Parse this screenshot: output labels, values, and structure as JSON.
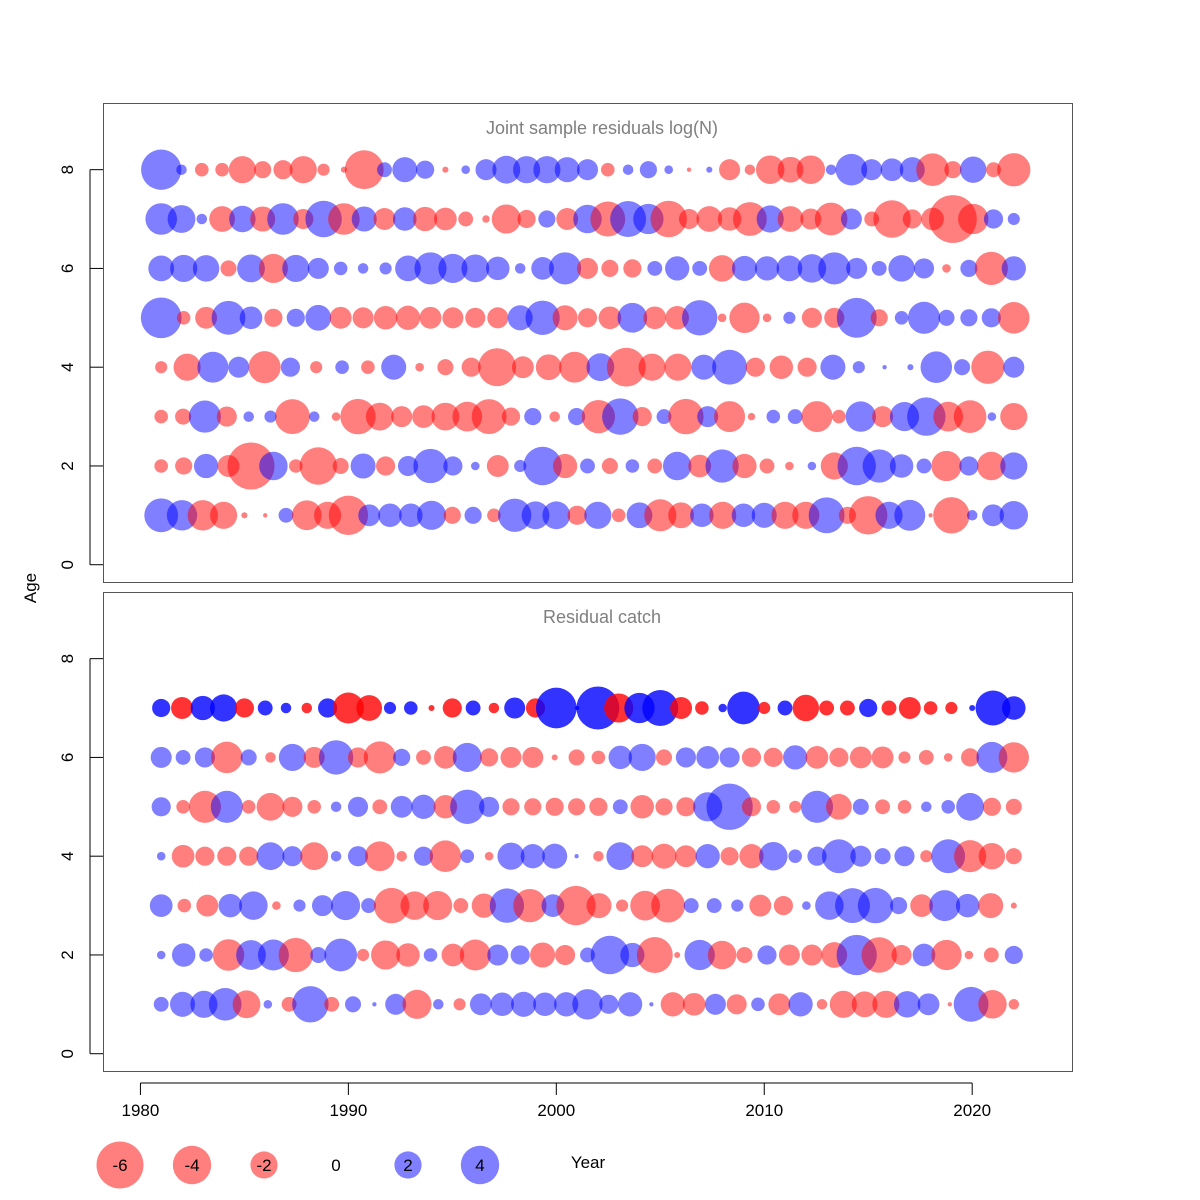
{
  "colors": {
    "negative": "#ff0000",
    "positive": "#0000ff",
    "negative_alpha": 0.5,
    "positive_alpha": 0.5,
    "catch_age7_alpha": 0.8,
    "title": "#7f7f7f",
    "frame": "#555555"
  },
  "ylabel": "Age",
  "xlabel": "Year",
  "chart_data": [
    {
      "type": "scatter",
      "title": "Joint sample residuals log(N)",
      "xlabel": "Year",
      "ylabel": "Age",
      "xlim": [
        1978.2,
        2024.8
      ],
      "ylim": [
        -0.35,
        9.35
      ],
      "xticks": [
        1980,
        1990,
        2000,
        2010,
        2020
      ],
      "yticks": [
        0,
        2,
        4,
        6,
        8
      ],
      "ages": [
        8,
        7,
        6,
        5,
        4,
        3,
        2,
        1
      ],
      "year_start": 1981,
      "year_end": 2022,
      "residual_scale": "bubble area proportional to |residual|; red = negative, blue = positive",
      "residuals": {
        "8": [
          4.4,
          0.3,
          -0.5,
          -0.5,
          -2.0,
          -0.8,
          -1.0,
          -2.0,
          -0.4,
          -0.1,
          -4.1,
          0.6,
          1.7,
          0.9,
          -0.1,
          0.2,
          1.2,
          2.1,
          2.0,
          2.0,
          1.7,
          1.2,
          -0.5,
          0.3,
          0.8,
          0.2,
          -0.05,
          0.1,
          -1.2,
          -0.3,
          -2.2,
          -1.8,
          -2.2,
          0.3,
          2.7,
          1.2,
          1.4,
          1.7,
          -2.9,
          -0.8,
          1.9,
          -0.6,
          -3.0
        ],
        "7": [
          2.7,
          2.1,
          0.3,
          -1.8,
          1.9,
          -1.7,
          2.7,
          -1.1,
          3.6,
          -2.7,
          1.7,
          -1.3,
          1.5,
          -1.6,
          -1.4,
          -0.6,
          -0.15,
          -2.3,
          -0.9,
          0.8,
          -1.3,
          2.2,
          -3.3,
          3.5,
          2.5,
          -3.6,
          -1.1,
          -1.8,
          -1.5,
          -3.1,
          2.0,
          -1.8,
          -1.2,
          -2.9,
          1.2,
          -0.6,
          -3.8,
          -1.0,
          -1.4,
          -6.2,
          -2.5,
          1.0,
          0.4
        ],
        "6": [
          1.8,
          2.0,
          1.9,
          -0.7,
          2.1,
          -2.3,
          2.0,
          1.2,
          0.5,
          0.3,
          0.4,
          1.8,
          2.8,
          2.3,
          2.1,
          1.5,
          0.3,
          1.4,
          2.8,
          -1.2,
          -0.8,
          -0.9,
          0.6,
          1.6,
          0.6,
          -1.9,
          1.7,
          1.6,
          1.8,
          2.2,
          2.8,
          1.2,
          0.6,
          1.9,
          1.1,
          -0.2,
          0.8,
          -3.0,
          1.6
        ],
        "5": [
          4.5,
          -0.5,
          -1.3,
          3.1,
          1.4,
          -0.9,
          0.9,
          1.8,
          -1.3,
          -1.2,
          -1.5,
          -1.6,
          -1.3,
          -1.2,
          -1.1,
          -1.2,
          1.7,
          3.2,
          -1.7,
          -1.0,
          -1.4,
          2.4,
          -1.4,
          -1.5,
          3.4,
          -0.2,
          -2.5,
          -0.2,
          0.4,
          -1.1,
          -1.1,
          4.3,
          -0.8,
          0.5,
          2.8,
          0.7,
          0.8,
          1.0,
          -2.7
        ],
        "4": [
          -0.4,
          -2.0,
          2.6,
          1.2,
          -2.8,
          1.0,
          -0.4,
          0.5,
          -0.5,
          1.7,
          -0.2,
          -0.7,
          -1.0,
          -3.9,
          -1.3,
          -1.8,
          -2.6,
          2.1,
          -4.1,
          -2.0,
          -2.0,
          1.7,
          3.3,
          -1.0,
          -1.5,
          -1.0,
          1.7,
          0.4,
          0.05,
          0.1,
          2.7,
          0.7,
          -3.0,
          1.2
        ],
        "3": [
          -0.5,
          -0.7,
          2.8,
          -1.1,
          0.3,
          0.4,
          -3.3,
          0.3,
          -0.2,
          -3.4,
          -2.1,
          -1.2,
          -1.4,
          -2.1,
          -2.4,
          -3.3,
          -0.9,
          0.8,
          -0.3,
          0.8,
          -3.0,
          3.6,
          -1.0,
          0.6,
          -3.4,
          1.2,
          -2.6,
          -0.15,
          0.5,
          0.6,
          -2.6,
          -0.5,
          2.5,
          -1.2,
          2.3,
          4.0,
          -2.4,
          -2.9,
          0.2,
          -2.0
        ],
        "2": [
          -0.5,
          -0.8,
          1.6,
          -1.3,
          -6.0,
          2.2,
          -0.5,
          -3.8,
          -0.7,
          1.7,
          -1.0,
          1.1,
          3.2,
          1.0,
          0.2,
          -1.3,
          0.4,
          4.0,
          -1.6,
          0.6,
          -0.7,
          0.5,
          -0.6,
          2.2,
          -1.4,
          3.0,
          -1.6,
          -0.6,
          -0.2,
          0.2,
          -2.0,
          4.0,
          3.0,
          1.5,
          0.6,
          -2.5,
          1.0,
          -2.2,
          2.0
        ],
        "1": [
          3.1,
          2.5,
          -2.5,
          -2.0,
          -0.1,
          -0.05,
          0.6,
          -2.4,
          -2.0,
          -4.2,
          1.3,
          1.5,
          1.5,
          2.3,
          -0.8,
          0.8,
          -0.5,
          3.0,
          2.1,
          2.1,
          -1.0,
          2.0,
          -0.5,
          1.8,
          -2.8,
          -1.8,
          1.5,
          -2.0,
          1.5,
          1.7,
          -2.0,
          -2.0,
          3.5,
          -0.8,
          -4.0,
          2.0,
          2.6,
          -0.05,
          -3.6,
          0.3,
          1.3,
          2.2
        ]
      }
    },
    {
      "type": "scatter",
      "title": "Residual catch",
      "xlabel": "Year",
      "ylabel": "Age",
      "xlim": [
        1978.2,
        2024.8
      ],
      "ylim": [
        -0.35,
        9.35
      ],
      "xticks": [
        1980,
        1990,
        2000,
        2010,
        2020
      ],
      "yticks": [
        0,
        2,
        4,
        6,
        8
      ],
      "ages": [
        7,
        6,
        5,
        4,
        3,
        2,
        1
      ],
      "year_start": 1981,
      "year_end": 2022,
      "residual_scale": "bubble area proportional to |residual|; red = negative, blue = positive",
      "residuals": {
        "7": [
          0.9,
          -1.3,
          1.6,
          2.0,
          -1.0,
          0.6,
          0.3,
          -0.3,
          1.0,
          -2.6,
          -1.8,
          0.4,
          0.5,
          -0.1,
          -1.0,
          0.6,
          -0.3,
          1.2,
          -1.0,
          4.5,
          0.05,
          5.0,
          -2.3,
          2.5,
          3.5,
          -1.3,
          -0.5,
          0.2,
          2.9,
          -0.4,
          0.6,
          -1.9,
          -0.6,
          -0.6,
          0.9,
          -0.6,
          -1.3,
          -0.5,
          -0.4,
          0.1,
          3.3,
          1.5
        ],
        "6": [
          1.2,
          0.6,
          1.1,
          -2.7,
          0.7,
          -0.3,
          2.0,
          -1.2,
          3.2,
          -1.1,
          -2.8,
          0.8,
          -0.6,
          -1.4,
          2.3,
          -0.9,
          -1.2,
          -1.2,
          -0.1,
          -0.7,
          -0.5,
          1.5,
          2.0,
          -0.7,
          1.1,
          1.4,
          1.1,
          -1.0,
          -1.0,
          1.6,
          -1.4,
          -1.0,
          -1.3,
          -1.3,
          -0.4,
          -0.6,
          -0.2,
          -0.9,
          2.6,
          -2.5
        ],
        "5": [
          1.0,
          -0.5,
          -2.8,
          2.8,
          -0.5,
          -2.1,
          -1.1,
          -0.5,
          0.3,
          1.1,
          -0.6,
          1.3,
          1.6,
          -1.5,
          3.2,
          1.1,
          -0.8,
          -0.8,
          -0.9,
          -0.8,
          -0.9,
          0.6,
          -1.5,
          -0.8,
          -1.0,
          2.3,
          5.8,
          -1.0,
          -0.5,
          -0.4,
          2.8,
          -1.8,
          0.7,
          -0.6,
          -0.5,
          0.3,
          0.5,
          2.1,
          -0.9,
          -0.7
        ],
        "4": [
          0.2,
          -1.4,
          -1.0,
          -1.0,
          -1.0,
          2.1,
          1.1,
          -2.1,
          0.3,
          1.1,
          -2.4,
          -0.3,
          1.0,
          -2.7,
          0.5,
          -0.2,
          2.0,
          1.6,
          1.7,
          0.05,
          -0.3,
          2.1,
          -1.3,
          -1.7,
          -1.3,
          1.6,
          -0.9,
          -1.6,
          2.2,
          0.5,
          1.0,
          3.1,
          1.2,
          0.7,
          1.1,
          -0.4,
          3.1,
          -2.8,
          -1.9,
          -0.7
        ],
        "3": [
          1.4,
          -0.5,
          -1.3,
          1.5,
          2.2,
          -0.2,
          0.4,
          1.2,
          2.3,
          0.6,
          -3.4,
          -2.2,
          -2.3,
          -0.6,
          -1.6,
          3.2,
          -3.0,
          1.4,
          -4.2,
          -1.7,
          -0.4,
          -2.4,
          -3.1,
          0.6,
          0.6,
          0.4,
          -1.3,
          -1.0,
          0.2,
          2.2,
          3.3,
          3.4,
          0.8,
          -1.4,
          2.6,
          1.5,
          -1.7,
          -0.1
        ],
        "2": [
          0.2,
          1.5,
          0.5,
          -2.7,
          2.4,
          2.6,
          -3.2,
          0.7,
          2.9,
          -0.4,
          -2.3,
          -1.5,
          0.5,
          -1.4,
          -2.6,
          1.2,
          1.0,
          -1.7,
          -1.1,
          0.6,
          4.0,
          1.6,
          -3.5,
          -0.1,
          2.5,
          -2.2,
          -0.7,
          1.0,
          -1.2,
          -1.2,
          -1.8,
          4.4,
          -3.4,
          -1.1,
          1.4,
          -2.5,
          -0.2,
          -0.6,
          0.9
        ],
        "1": [
          0.6,
          1.7,
          2.0,
          2.9,
          -2.1,
          0.2,
          -0.6,
          3.6,
          -0.6,
          0.7,
          0.05,
          1.2,
          -2.3,
          0.3,
          -0.4,
          1.3,
          1.5,
          1.7,
          1.5,
          1.6,
          2.5,
          1.0,
          1.6,
          0.05,
          -1.6,
          -1.4,
          1.2,
          -1.1,
          0.5,
          -1.3,
          1.6,
          -0.3,
          -2.0,
          -1.8,
          -2.0,
          1.9,
          1.3,
          -0.05,
          3.3,
          -2.2,
          -0.3
        ]
      }
    }
  ],
  "legend": {
    "entries": [
      {
        "label": "-6",
        "value": -6
      },
      {
        "label": "-4",
        "value": -4
      },
      {
        "label": "-2",
        "value": -2
      },
      {
        "label": "0",
        "value": 0
      },
      {
        "label": "2",
        "value": 2
      },
      {
        "label": "4",
        "value": 4
      }
    ]
  }
}
